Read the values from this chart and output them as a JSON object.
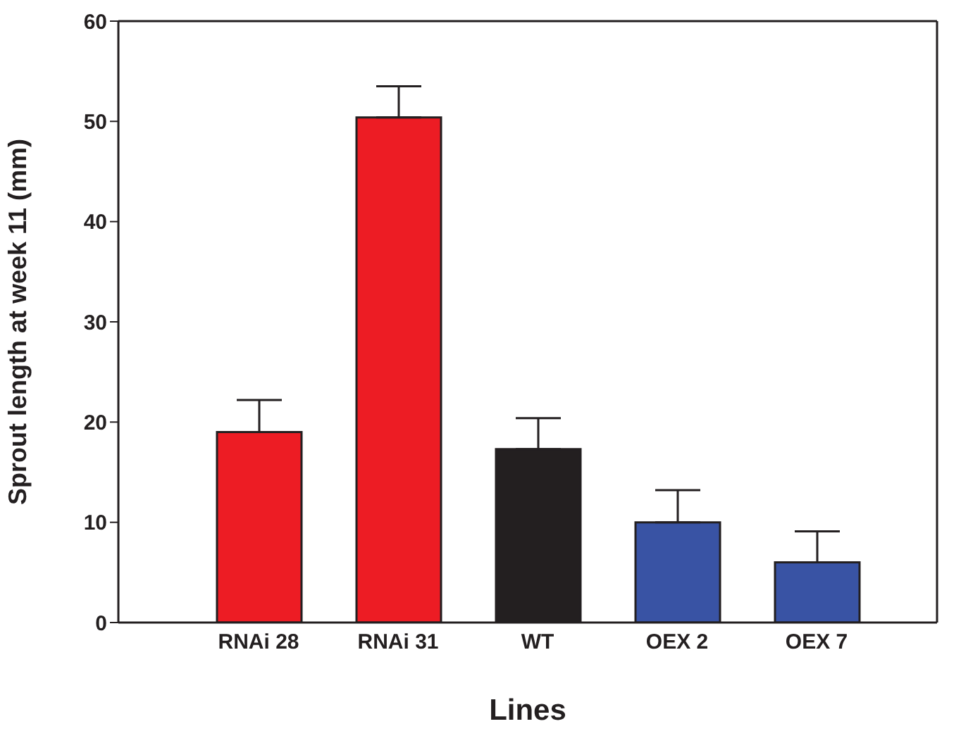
{
  "chart_data": {
    "type": "bar",
    "xlabel": "Lines",
    "ylabel": "Sprout length at week 11 (mm)",
    "categories": [
      "RNAi 28",
      "RNAi 31",
      "WT",
      "OEX 2",
      "OEX 7"
    ],
    "values": [
      19.0,
      50.4,
      17.3,
      10.0,
      6.0
    ],
    "colors": [
      "#ed1c24",
      "#ed1c24",
      "#231f20",
      "#3953a4",
      "#3953a4"
    ],
    "errors": [
      [
        19.0,
        22.2
      ],
      [
        50.4,
        53.5
      ],
      [
        17.3,
        20.4
      ],
      [
        10.0,
        13.2
      ],
      [
        6.0,
        9.1
      ]
    ],
    "ylim": [
      0,
      60
    ],
    "yticks": [
      0,
      10,
      20,
      30,
      40,
      50,
      60
    ],
    "grid": false
  }
}
